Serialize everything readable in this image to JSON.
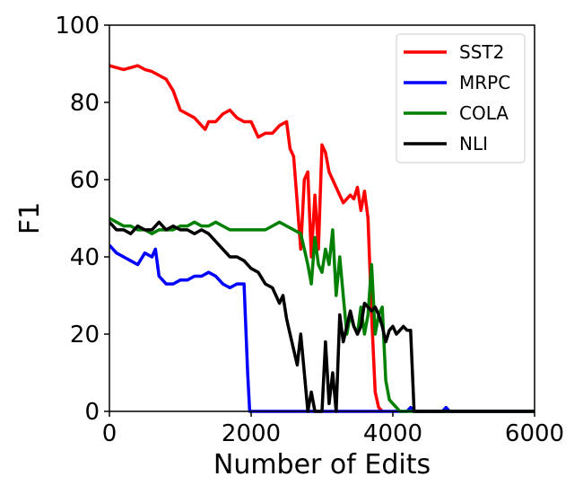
{
  "chart_data": {
    "type": "line",
    "title": "",
    "xlabel": "Number of Edits",
    "ylabel": "F1",
    "xlim": [
      0,
      6000
    ],
    "ylim": [
      0,
      100
    ],
    "xticks": [
      0,
      2000,
      4000,
      6000
    ],
    "yticks": [
      0,
      20,
      40,
      60,
      80,
      100
    ],
    "grid": false,
    "legend_position": "top-right",
    "series": [
      {
        "name": "SST2",
        "color": "#ff0000",
        "x": [
          0,
          100,
          200,
          300,
          400,
          500,
          600,
          700,
          800,
          900,
          1000,
          1100,
          1200,
          1300,
          1350,
          1400,
          1500,
          1600,
          1700,
          1800,
          1900,
          2000,
          2100,
          2200,
          2300,
          2400,
          2500,
          2550,
          2600,
          2650,
          2700,
          2750,
          2800,
          2850,
          2900,
          2950,
          3000,
          3050,
          3100,
          3200,
          3300,
          3400,
          3450,
          3500,
          3550,
          3600,
          3650,
          3700,
          3750,
          3800,
          3850
        ],
        "y": [
          89.5,
          89,
          88.5,
          89,
          89.5,
          88.5,
          88,
          87,
          86,
          83,
          78,
          77,
          76,
          74,
          73,
          75,
          75,
          77,
          78,
          76,
          75,
          75,
          71,
          72,
          72,
          74,
          75,
          68,
          66,
          54,
          42,
          60,
          62,
          40,
          56,
          42,
          69,
          67,
          62,
          58,
          54,
          56,
          55,
          58,
          52,
          57,
          50,
          25,
          5,
          1,
          0
        ]
      },
      {
        "name": "MRPC",
        "color": "#0000ff",
        "x": [
          0,
          100,
          200,
          300,
          400,
          500,
          600,
          650,
          700,
          800,
          900,
          1000,
          1100,
          1200,
          1300,
          1400,
          1500,
          1600,
          1700,
          1800,
          1900,
          1950,
          1980,
          2000,
          2100,
          3000,
          4000,
          4200,
          4250,
          4300,
          4700,
          4750,
          4800,
          6000
        ],
        "y": [
          43,
          41,
          40,
          39,
          38,
          41,
          40,
          42,
          35,
          33,
          33,
          34,
          34,
          35,
          35,
          36,
          35,
          33,
          32,
          33,
          33,
          10,
          0,
          0,
          0,
          0,
          0,
          0,
          1,
          0,
          0,
          1,
          0,
          0
        ]
      },
      {
        "name": "COLA",
        "color": "#008000",
        "x": [
          0,
          100,
          200,
          300,
          400,
          500,
          600,
          700,
          800,
          900,
          1000,
          1100,
          1200,
          1300,
          1400,
          1500,
          1600,
          1700,
          1800,
          1900,
          2000,
          2100,
          2200,
          2300,
          2400,
          2500,
          2600,
          2700,
          2750,
          2800,
          2850,
          2900,
          2950,
          3000,
          3050,
          3100,
          3150,
          3200,
          3250,
          3300,
          3350,
          3400,
          3450,
          3500,
          3550,
          3600,
          3650,
          3700,
          3750,
          3800,
          3850,
          3900,
          3950,
          4000,
          4050,
          4100,
          6000
        ],
        "y": [
          50,
          49,
          48,
          48,
          47,
          47,
          46,
          47,
          47,
          47,
          48,
          48,
          49,
          48,
          48,
          49,
          48,
          47,
          47,
          47,
          47,
          47,
          47,
          48,
          49,
          48,
          47,
          46,
          42,
          38,
          33,
          45,
          38,
          36,
          42,
          38,
          47,
          30,
          40,
          30,
          20,
          25,
          22,
          20,
          27,
          20,
          25,
          38,
          20,
          25,
          27,
          8,
          3,
          2,
          1,
          0,
          0
        ]
      },
      {
        "name": "NLI",
        "color": "#000000",
        "x": [
          0,
          100,
          200,
          300,
          400,
          500,
          600,
          700,
          800,
          900,
          1000,
          1100,
          1200,
          1300,
          1400,
          1500,
          1600,
          1700,
          1800,
          1900,
          2000,
          2100,
          2200,
          2300,
          2400,
          2450,
          2500,
          2550,
          2600,
          2650,
          2700,
          2750,
          2800,
          2850,
          2900,
          2950,
          3000,
          3050,
          3100,
          3150,
          3200,
          3250,
          3300,
          3350,
          3400,
          3450,
          3500,
          3550,
          3600,
          3650,
          3700,
          3750,
          3800,
          3850,
          3900,
          3950,
          4000,
          4050,
          4100,
          4150,
          4200,
          4250,
          4300,
          6000
        ],
        "y": [
          49,
          47,
          47,
          46,
          48,
          47,
          47,
          49,
          47,
          48,
          47,
          47,
          46,
          47,
          46,
          44,
          42,
          40,
          40,
          39,
          37,
          36,
          33,
          32,
          28,
          30,
          24,
          20,
          16,
          12,
          20,
          10,
          0,
          5,
          0,
          0,
          0,
          18,
          2,
          10,
          0,
          25,
          18,
          22,
          26,
          22,
          20,
          22,
          28,
          27,
          26,
          27,
          25,
          22,
          18,
          21,
          22,
          20,
          21,
          22,
          21,
          21,
          0,
          0
        ]
      }
    ]
  }
}
